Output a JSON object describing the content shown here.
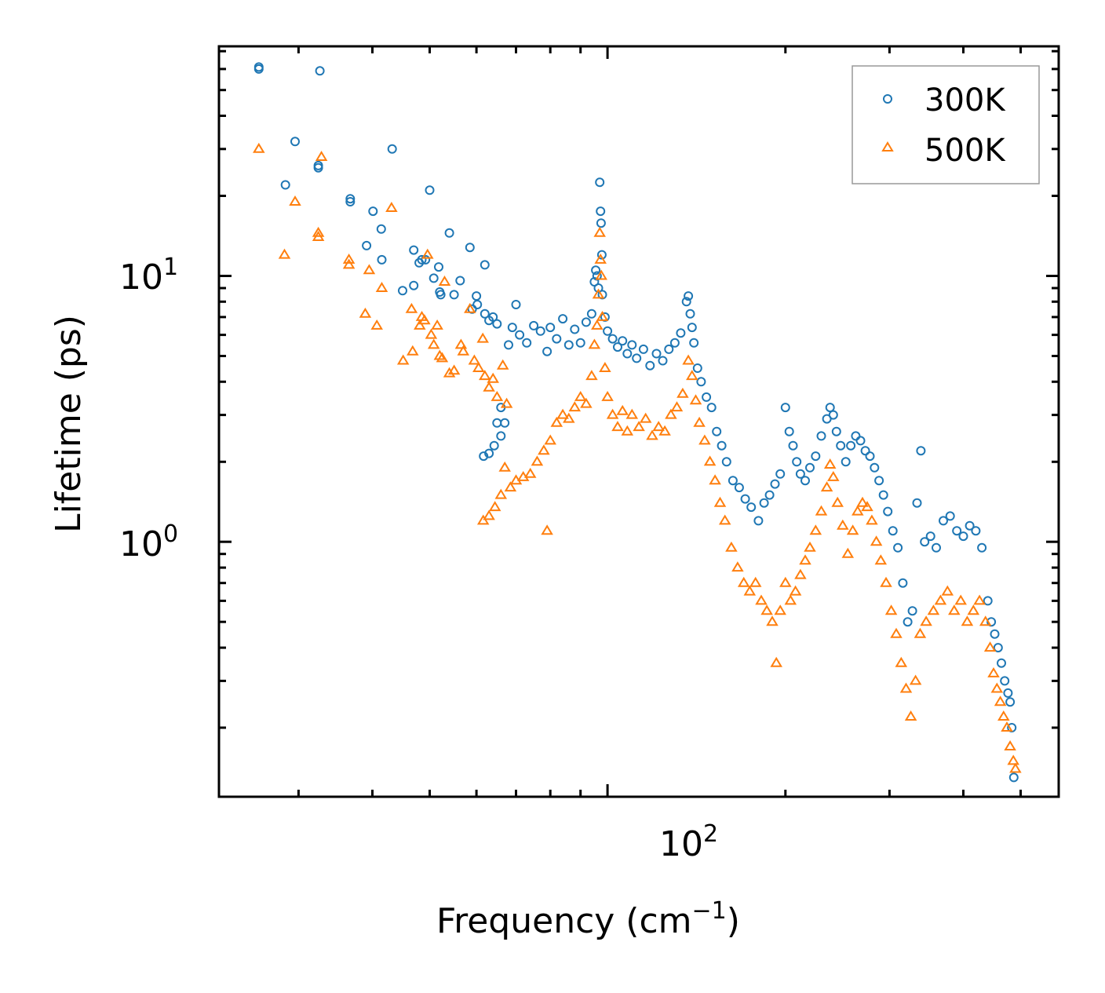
{
  "chart_data": {
    "type": "scatter",
    "title": "",
    "xlabel": "Frequency (cm",
    "xlabel_sup": "−1",
    "xlabel_tail": ")",
    "ylabel": "Lifetime (ps)",
    "xscale": "log",
    "yscale": "log",
    "xlim": [
      22,
      580
    ],
    "ylim": [
      0.11,
      73
    ],
    "xticks": [
      {
        "base": "10",
        "exp": "2",
        "value": 100
      }
    ],
    "yticks": [
      {
        "base": "10",
        "exp": "0",
        "value": 1
      },
      {
        "base": "10",
        "exp": "1",
        "value": 10
      }
    ],
    "legend": {
      "placement": "top-right",
      "entries": [
        "300K",
        "500K"
      ]
    },
    "colors": {
      "300K": "#1f77b4",
      "500K": "#ff7f0e"
    },
    "series": [
      {
        "name": "300K",
        "marker": "circle-open",
        "points": [
          [
            25.7,
            61
          ],
          [
            25.7,
            60
          ],
          [
            29.6,
            32
          ],
          [
            28.5,
            22
          ],
          [
            32.4,
            26
          ],
          [
            32.4,
            25.5
          ],
          [
            32.6,
            59
          ],
          [
            36.7,
            19.5
          ],
          [
            36.7,
            19
          ],
          [
            39.1,
            13
          ],
          [
            40.1,
            17.5
          ],
          [
            41.4,
            15
          ],
          [
            41.5,
            11.5
          ],
          [
            43.2,
            30
          ],
          [
            45,
            8.8
          ],
          [
            47,
            12.5
          ],
          [
            47,
            9.2
          ],
          [
            48,
            11.2
          ],
          [
            48.5,
            11.5
          ],
          [
            49.2,
            11.5
          ],
          [
            50,
            21
          ],
          [
            50.8,
            9.8
          ],
          [
            51.8,
            10.8
          ],
          [
            52,
            8.7
          ],
          [
            52.2,
            8.5
          ],
          [
            54,
            14.5
          ],
          [
            55,
            8.5
          ],
          [
            56.3,
            9.6
          ],
          [
            58.5,
            12.8
          ],
          [
            59,
            7.5
          ],
          [
            60,
            8.4
          ],
          [
            60.2,
            7.8
          ],
          [
            62,
            11
          ],
          [
            62,
            7.2
          ],
          [
            63,
            6.8
          ],
          [
            64,
            7
          ],
          [
            65,
            6.6
          ],
          [
            61.7,
            2.1
          ],
          [
            63,
            2.15
          ],
          [
            64.3,
            2.3
          ],
          [
            66,
            2.5
          ],
          [
            67,
            2.8
          ],
          [
            65,
            2.8
          ],
          [
            66,
            3.2
          ],
          [
            68,
            5.5
          ],
          [
            69,
            6.4
          ],
          [
            70,
            7.8
          ],
          [
            71,
            6
          ],
          [
            73,
            5.6
          ],
          [
            75,
            6.5
          ],
          [
            77,
            6.2
          ],
          [
            79,
            5.2
          ],
          [
            80,
            6.4
          ],
          [
            82,
            5.8
          ],
          [
            84,
            6.9
          ],
          [
            86,
            5.5
          ],
          [
            88,
            6.3
          ],
          [
            90,
            5.6
          ],
          [
            92,
            6.7
          ],
          [
            94,
            7.2
          ],
          [
            95,
            9.5
          ],
          [
            95.5,
            10.5
          ],
          [
            96,
            10
          ],
          [
            96.5,
            9
          ],
          [
            97,
            22.5
          ],
          [
            97.3,
            17.5
          ],
          [
            97.5,
            15.8
          ],
          [
            97.8,
            12
          ],
          [
            98,
            8.5
          ],
          [
            99,
            7
          ],
          [
            100,
            6.2
          ],
          [
            102,
            5.8
          ],
          [
            104,
            5.4
          ],
          [
            106,
            5.7
          ],
          [
            108,
            5.1
          ],
          [
            110,
            5.5
          ],
          [
            112,
            4.9
          ],
          [
            115,
            5.3
          ],
          [
            118,
            4.6
          ],
          [
            121,
            5.1
          ],
          [
            124,
            4.8
          ],
          [
            127,
            5.3
          ],
          [
            130,
            5.6
          ],
          [
            133,
            6.1
          ],
          [
            136,
            8
          ],
          [
            137,
            8.4
          ],
          [
            138,
            7.2
          ],
          [
            139,
            6.4
          ],
          [
            140,
            5.6
          ],
          [
            142,
            4.5
          ],
          [
            144,
            4
          ],
          [
            147,
            3.5
          ],
          [
            150,
            3.2
          ],
          [
            153,
            2.6
          ],
          [
            156,
            2.3
          ],
          [
            159,
            2.0
          ],
          [
            163,
            1.7
          ],
          [
            167,
            1.6
          ],
          [
            171,
            1.45
          ],
          [
            175,
            1.35
          ],
          [
            180,
            1.2
          ],
          [
            184,
            1.4
          ],
          [
            188,
            1.5
          ],
          [
            192,
            1.65
          ],
          [
            196,
            1.8
          ],
          [
            200,
            3.2
          ],
          [
            203,
            2.6
          ],
          [
            206,
            2.3
          ],
          [
            209,
            2.0
          ],
          [
            212,
            1.8
          ],
          [
            216,
            1.7
          ],
          [
            220,
            1.9
          ],
          [
            225,
            2.1
          ],
          [
            230,
            2.5
          ],
          [
            235,
            2.9
          ],
          [
            238,
            3.2
          ],
          [
            241,
            3.0
          ],
          [
            244,
            2.6
          ],
          [
            248,
            2.3
          ],
          [
            253,
            2.0
          ],
          [
            258,
            2.3
          ],
          [
            263,
            2.5
          ],
          [
            268,
            2.4
          ],
          [
            273,
            2.2
          ],
          [
            278,
            2.1
          ],
          [
            283,
            1.9
          ],
          [
            288,
            1.7
          ],
          [
            293,
            1.5
          ],
          [
            298,
            1.3
          ],
          [
            304,
            1.1
          ],
          [
            310,
            0.95
          ],
          [
            316,
            0.7
          ],
          [
            322,
            0.5
          ],
          [
            328,
            0.55
          ],
          [
            334,
            1.4
          ],
          [
            339,
            2.2
          ],
          [
            344,
            1.0
          ],
          [
            352,
            1.05
          ],
          [
            360,
            0.95
          ],
          [
            370,
            1.2
          ],
          [
            380,
            1.25
          ],
          [
            390,
            1.1
          ],
          [
            400,
            1.05
          ],
          [
            410,
            1.15
          ],
          [
            420,
            1.1
          ],
          [
            430,
            0.95
          ],
          [
            440,
            0.6
          ],
          [
            446,
            0.5
          ],
          [
            452,
            0.45
          ],
          [
            458,
            0.4
          ],
          [
            464,
            0.35
          ],
          [
            470,
            0.3
          ],
          [
            476,
            0.27
          ],
          [
            480,
            0.25
          ],
          [
            483,
            0.2
          ],
          [
            487,
            0.13
          ]
        ]
      },
      {
        "name": "500K",
        "marker": "triangle-open",
        "points": [
          [
            25.7,
            30
          ],
          [
            28.4,
            12
          ],
          [
            29.6,
            19
          ],
          [
            32.4,
            14.5
          ],
          [
            32.4,
            14
          ],
          [
            32.8,
            28
          ],
          [
            36.5,
            11.5
          ],
          [
            36.5,
            11
          ],
          [
            38.9,
            7.2
          ],
          [
            39.5,
            10.5
          ],
          [
            40.7,
            6.5
          ],
          [
            41.5,
            9
          ],
          [
            43.1,
            18
          ],
          [
            45.1,
            4.8
          ],
          [
            46.6,
            7.5
          ],
          [
            46.8,
            5.2
          ],
          [
            48.1,
            6.5
          ],
          [
            48.5,
            7
          ],
          [
            49.6,
            12
          ],
          [
            49,
            6.8
          ],
          [
            50.3,
            6
          ],
          [
            50.8,
            5.5
          ],
          [
            51.5,
            6.5
          ],
          [
            52,
            5
          ],
          [
            52.5,
            4.9
          ],
          [
            53,
            9.5
          ],
          [
            54,
            4.3
          ],
          [
            55,
            4.4
          ],
          [
            56.5,
            5.5
          ],
          [
            57,
            5.2
          ],
          [
            58.5,
            7.5
          ],
          [
            59.5,
            4.8
          ],
          [
            60.5,
            4.5
          ],
          [
            61.5,
            5.8
          ],
          [
            62,
            4.2
          ],
          [
            63,
            3.8
          ],
          [
            64,
            4.1
          ],
          [
            65,
            3.5
          ],
          [
            66.5,
            4.6
          ],
          [
            67.5,
            3.3
          ],
          [
            61.6,
            1.2
          ],
          [
            63,
            1.25
          ],
          [
            64.5,
            1.35
          ],
          [
            66,
            1.5
          ],
          [
            67,
            1.9
          ],
          [
            68.5,
            1.6
          ],
          [
            70,
            1.7
          ],
          [
            72,
            1.75
          ],
          [
            74,
            1.8
          ],
          [
            76,
            2.0
          ],
          [
            78,
            2.2
          ],
          [
            79,
            1.1
          ],
          [
            80,
            2.4
          ],
          [
            82,
            2.8
          ],
          [
            84,
            3.0
          ],
          [
            86,
            2.9
          ],
          [
            88,
            3.2
          ],
          [
            90,
            3.5
          ],
          [
            92,
            3.3
          ],
          [
            94,
            4.2
          ],
          [
            95,
            5.5
          ],
          [
            96,
            6.5
          ],
          [
            96.5,
            8.5
          ],
          [
            97,
            14.5
          ],
          [
            97.3,
            11.5
          ],
          [
            97.6,
            10
          ],
          [
            98,
            7
          ],
          [
            99,
            4.5
          ],
          [
            100,
            3.5
          ],
          [
            102,
            3.0
          ],
          [
            104,
            2.7
          ],
          [
            106,
            3.1
          ],
          [
            108,
            2.6
          ],
          [
            110,
            3.0
          ],
          [
            113,
            2.7
          ],
          [
            116,
            2.9
          ],
          [
            119,
            2.5
          ],
          [
            122,
            2.7
          ],
          [
            125,
            2.6
          ],
          [
            128,
            3.0
          ],
          [
            131,
            3.2
          ],
          [
            134,
            3.6
          ],
          [
            137,
            4.8
          ],
          [
            139,
            4.2
          ],
          [
            141,
            3.4
          ],
          [
            143,
            2.8
          ],
          [
            146,
            2.4
          ],
          [
            149,
            2.0
          ],
          [
            152,
            1.7
          ],
          [
            155,
            1.4
          ],
          [
            158,
            1.2
          ],
          [
            162,
            0.95
          ],
          [
            166,
            0.8
          ],
          [
            170,
            0.7
          ],
          [
            174,
            0.65
          ],
          [
            178,
            0.7
          ],
          [
            182,
            0.6
          ],
          [
            186,
            0.55
          ],
          [
            190,
            0.5
          ],
          [
            193,
            0.35
          ],
          [
            196,
            0.55
          ],
          [
            200,
            0.7
          ],
          [
            204,
            0.6
          ],
          [
            208,
            0.65
          ],
          [
            212,
            0.75
          ],
          [
            216,
            0.85
          ],
          [
            220,
            0.95
          ],
          [
            225,
            1.1
          ],
          [
            230,
            1.3
          ],
          [
            235,
            1.6
          ],
          [
            238,
            1.95
          ],
          [
            241,
            1.75
          ],
          [
            245,
            1.4
          ],
          [
            250,
            1.15
          ],
          [
            255,
            0.9
          ],
          [
            260,
            1.1
          ],
          [
            265,
            1.3
          ],
          [
            270,
            1.4
          ],
          [
            275,
            1.35
          ],
          [
            280,
            1.2
          ],
          [
            285,
            1.0
          ],
          [
            290,
            0.85
          ],
          [
            296,
            0.7
          ],
          [
            302,
            0.55
          ],
          [
            308,
            0.45
          ],
          [
            314,
            0.35
          ],
          [
            320,
            0.28
          ],
          [
            326,
            0.22
          ],
          [
            332,
            0.3
          ],
          [
            338,
            0.45
          ],
          [
            346,
            0.5
          ],
          [
            356,
            0.55
          ],
          [
            366,
            0.6
          ],
          [
            376,
            0.65
          ],
          [
            386,
            0.55
          ],
          [
            396,
            0.6
          ],
          [
            406,
            0.5
          ],
          [
            416,
            0.55
          ],
          [
            426,
            0.6
          ],
          [
            436,
            0.5
          ],
          [
            444,
            0.4
          ],
          [
            450,
            0.32
          ],
          [
            456,
            0.28
          ],
          [
            462,
            0.25
          ],
          [
            468,
            0.22
          ],
          [
            474,
            0.2
          ],
          [
            480,
            0.17
          ],
          [
            486,
            0.15
          ],
          [
            490,
            0.14
          ]
        ]
      }
    ]
  }
}
